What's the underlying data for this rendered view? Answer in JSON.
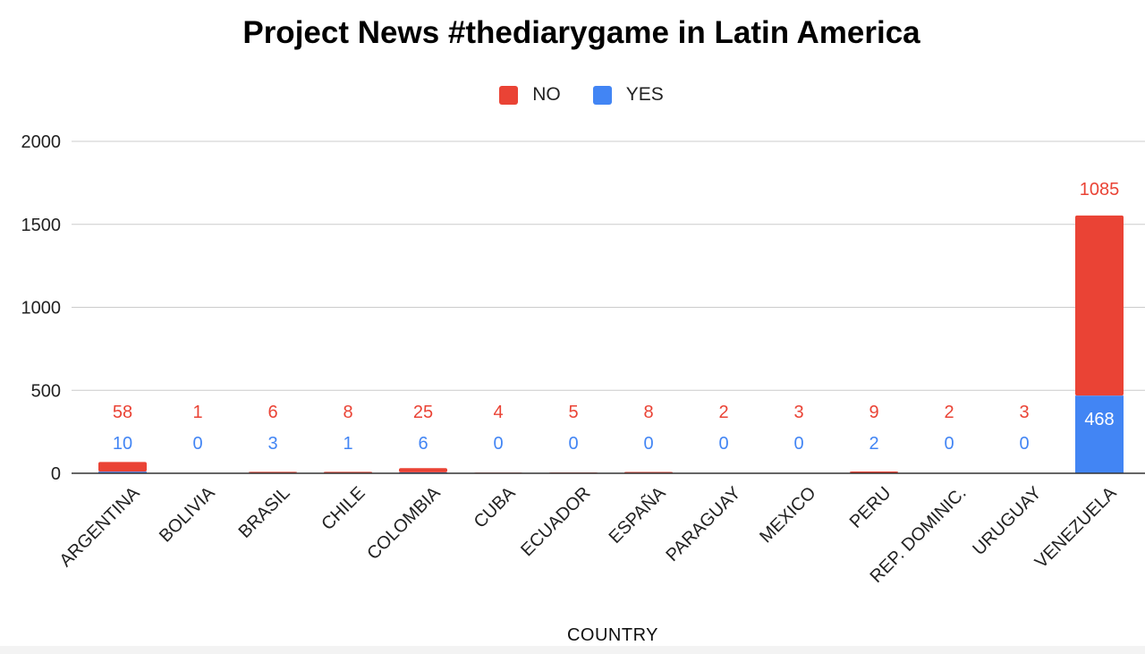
{
  "chart_data": {
    "type": "bar",
    "stacked": true,
    "title": "Project News #thediarygame in Latin America",
    "xlabel": "COUNTRY",
    "ylabel": "",
    "ylim": [
      0,
      2000
    ],
    "yticks": [
      0,
      500,
      1000,
      1500,
      2000
    ],
    "grid": true,
    "legend_position": "top",
    "categories": [
      "ARGENTINA",
      "BOLIVIA",
      "BRASIL",
      "CHILE",
      "COLOMBIA",
      "CUBA",
      "ECUADOR",
      "ESPAÑA",
      "PARAGUAY",
      "MEXICO",
      "PERU",
      "REP. DOMINIC.",
      "URUGUAY",
      "VENEZUELA"
    ],
    "series": [
      {
        "name": "YES",
        "color": "#4285f4",
        "values": [
          10,
          0,
          3,
          1,
          6,
          0,
          0,
          0,
          0,
          0,
          2,
          0,
          0,
          468
        ]
      },
      {
        "name": "NO",
        "color": "#ea4335",
        "values": [
          58,
          1,
          6,
          8,
          25,
          4,
          5,
          8,
          2,
          3,
          9,
          2,
          3,
          1085
        ]
      }
    ]
  },
  "legend": [
    {
      "label": "NO",
      "color": "#ea4335"
    },
    {
      "label": "YES",
      "color": "#4285f4"
    }
  ]
}
